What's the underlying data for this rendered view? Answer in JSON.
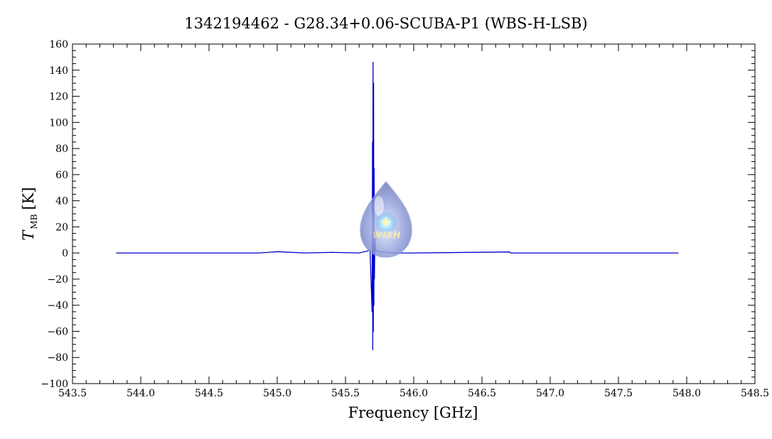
{
  "chart_data": {
    "type": "line",
    "title": "1342194462 - G28.34+0.06-SCUBA-P1 (WBS-H-LSB)",
    "xlabel": "Frequency [GHz]",
    "ylabel_main": "T",
    "ylabel_sub": "MB",
    "ylabel_unit": "[K]",
    "xlim": [
      543.5,
      548.5
    ],
    "ylim": [
      -100,
      160
    ],
    "xticks": [
      543.5,
      544.0,
      544.5,
      545.0,
      545.5,
      546.0,
      546.5,
      547.0,
      547.5,
      548.0,
      548.5
    ],
    "xtick_labels": [
      "543.5",
      "544.0",
      "544.5",
      "545.0",
      "545.5",
      "546.0",
      "546.5",
      "547.0",
      "547.5",
      "548.0",
      "548.5"
    ],
    "yticks": [
      -100,
      -80,
      -60,
      -40,
      -20,
      0,
      20,
      40,
      60,
      80,
      100,
      120,
      140,
      160
    ],
    "ytick_labels": [
      "−100",
      "−80",
      "−60",
      "−40",
      "−20",
      "0",
      "20",
      "40",
      "60",
      "80",
      "100",
      "120",
      "140",
      "160"
    ],
    "series": [
      {
        "color": "#0000cc",
        "x": [
          543.82,
          544.8,
          544.87,
          545.0,
          545.2,
          545.4,
          545.6,
          545.68,
          545.695,
          545.698,
          545.7,
          545.702,
          545.704,
          545.706,
          545.708,
          545.71,
          545.712,
          545.716,
          545.72,
          545.75,
          545.85,
          546.0,
          546.7,
          546.71,
          547.94
        ],
        "y": [
          0,
          0,
          0,
          1,
          0,
          0.5,
          0,
          2,
          -45,
          85,
          -74,
          146,
          -60,
          130,
          -40,
          65,
          -20,
          15,
          2,
          1,
          0,
          0,
          0.8,
          0,
          0
        ]
      }
    ],
    "logo": {
      "text": "WISH",
      "icon": "water-drop-logo-icon"
    },
    "grid": false,
    "legend": "none"
  }
}
